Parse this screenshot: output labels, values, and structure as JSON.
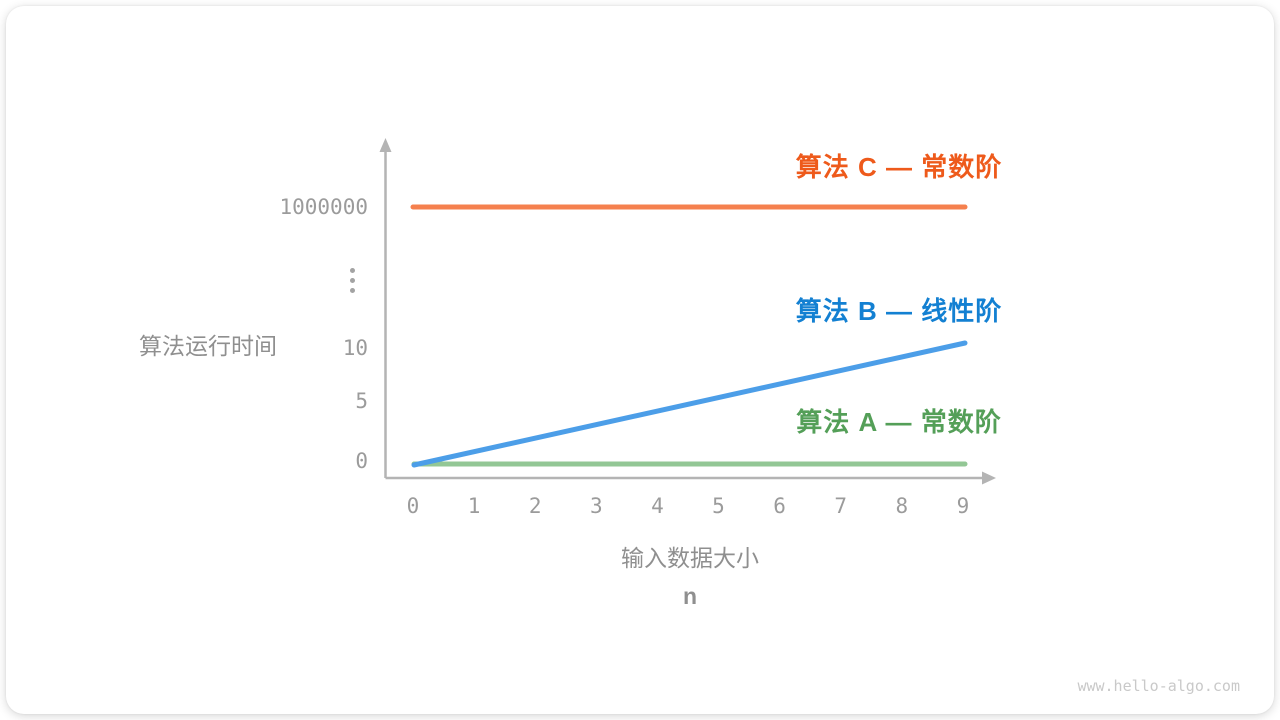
{
  "card": {
    "watermark": "www.hello-algo.com"
  },
  "chart_data": {
    "type": "line",
    "title": "",
    "ylabel": "算法运行时间",
    "xlabel_line1": "输入数据大小",
    "xlabel_line2": "n",
    "x": [
      0,
      1,
      2,
      3,
      4,
      5,
      6,
      7,
      8,
      9
    ],
    "x_ticks": [
      "0",
      "1",
      "2",
      "3",
      "4",
      "5",
      "6",
      "7",
      "8",
      "9"
    ],
    "y_ticks": [
      "0",
      "5",
      "10",
      "⋮",
      "1000000"
    ],
    "broken_y_axis": true,
    "grid": false,
    "legend_position": "inline-right",
    "axis_color": "#B4B4B4",
    "tick_color": "#9B9B9B",
    "series": [
      {
        "key": "C",
        "name": "算法 C — 常数阶",
        "complexity": "constant",
        "values": [
          1000000,
          1000000,
          1000000,
          1000000,
          1000000,
          1000000,
          1000000,
          1000000,
          1000000,
          1000000
        ],
        "line_color": "#F5804E",
        "label_color": "#EE5A1B"
      },
      {
        "key": "B",
        "name": "算法 B — 线性阶",
        "complexity": "linear",
        "values": [
          0,
          1,
          2,
          3,
          4,
          5,
          6,
          7,
          8,
          9
        ],
        "line_color": "#4C9EE8",
        "label_color": "#1380D2"
      },
      {
        "key": "A",
        "name": "算法 A — 常数阶",
        "complexity": "constant",
        "values": [
          1,
          1,
          1,
          1,
          1,
          1,
          1,
          1,
          1,
          1
        ],
        "line_color": "#93C795",
        "label_color": "#549F58"
      }
    ]
  }
}
